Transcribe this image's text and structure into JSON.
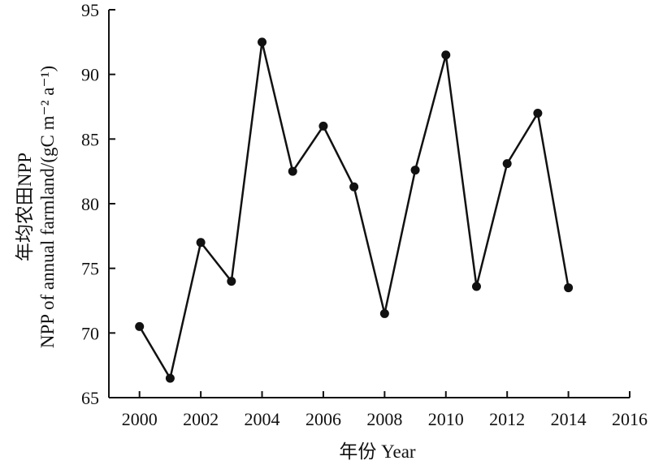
{
  "chart_data": {
    "type": "line",
    "x": [
      2000,
      2001,
      2002,
      2003,
      2004,
      2005,
      2006,
      2007,
      2008,
      2009,
      2010,
      2011,
      2012,
      2013,
      2014
    ],
    "series": [
      {
        "values": [
          70.5,
          66.5,
          77.0,
          74.0,
          92.5,
          82.5,
          86.0,
          81.3,
          71.5,
          82.6,
          91.5,
          73.6,
          83.1,
          87.0,
          73.5
        ]
      }
    ],
    "xlim": [
      1999,
      2016
    ],
    "ylim": [
      65,
      95
    ],
    "xticks": [
      2000,
      2002,
      2004,
      2006,
      2008,
      2010,
      2012,
      2014,
      2016
    ],
    "yticks": [
      65,
      70,
      75,
      80,
      85,
      90,
      95
    ],
    "xlabel": "年份 Year",
    "ylabel_line1": "年均农田NPP",
    "ylabel_line2": "NPP of annual farmland/(gC m⁻² a⁻¹)",
    "grid": false,
    "colors": {
      "line": "#111111",
      "marker": "#111111",
      "axis": "#111111"
    }
  }
}
